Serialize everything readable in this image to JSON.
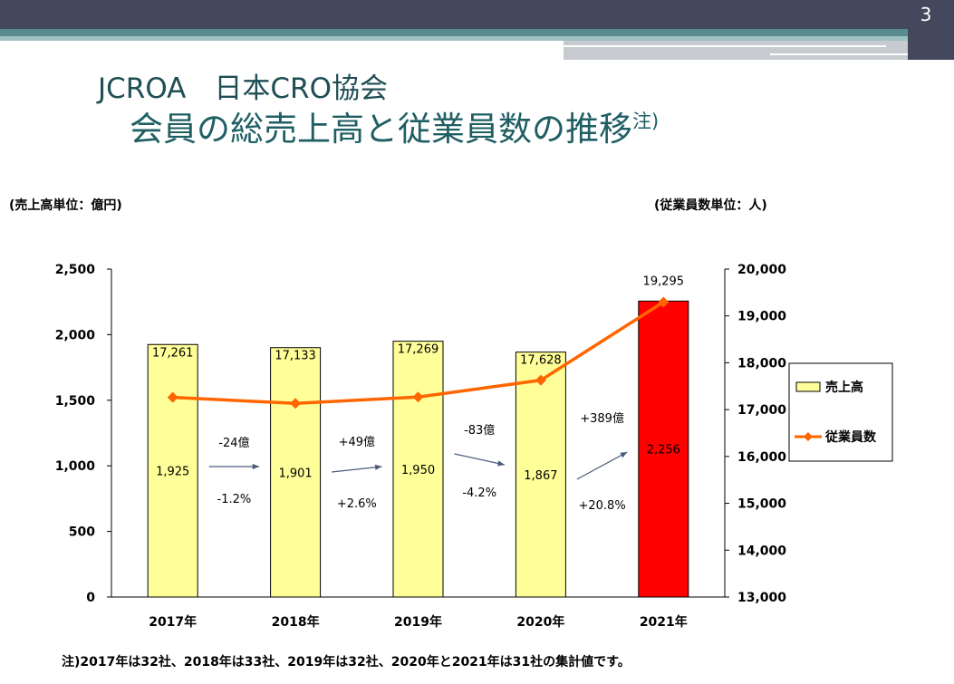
{
  "slide_number": "3",
  "title_line1": "JCROA　日本CRO協会",
  "title_line2": "会員の総売上高と従業員数の推移",
  "title_note_mark": "注)",
  "left_unit": "(売上高単位：億円)",
  "right_unit": "(従業員数単位：人)",
  "footnote": "注)2017年は32社、2018年は33社、2019年は32社、2020年と2021年は31社の集計値です。",
  "colors": {
    "bar": "#ffff99",
    "bar_highlight": "#ff0000",
    "line": "#ff6600",
    "header": "#43485c",
    "title": "#1f5f63"
  },
  "chart_data": {
    "type": "bar",
    "categories": [
      "2017年",
      "2018年",
      "2019年",
      "2020年",
      "2021年"
    ],
    "series": [
      {
        "name": "売上高",
        "type": "bar",
        "axis": "left",
        "values": [
          1925,
          1901,
          1950,
          1867,
          2256
        ],
        "labels": [
          "1,925",
          "1,901",
          "1,950",
          "1,867",
          "2,256"
        ]
      },
      {
        "name": "従業員数",
        "type": "line",
        "axis": "right",
        "values": [
          17261,
          17133,
          17269,
          17628,
          19295
        ],
        "labels": [
          "17,261",
          "17,133",
          "17,269",
          "17,628",
          "19,295"
        ]
      }
    ],
    "y_left": {
      "range": [
        0,
        2500
      ],
      "ticks": [
        "0",
        "500",
        "1,000",
        "1,500",
        "2,000",
        "2,500"
      ]
    },
    "y_right": {
      "range": [
        13000,
        20000
      ],
      "ticks": [
        "13,000",
        "14,000",
        "15,000",
        "16,000",
        "17,000",
        "18,000",
        "19,000",
        "20,000"
      ]
    },
    "changes": [
      {
        "amount": "-24億",
        "percent": "-1.2%"
      },
      {
        "amount": "+49億",
        "percent": "+2.6%"
      },
      {
        "amount": "-83億",
        "percent": "-4.2%"
      },
      {
        "amount": "+389億",
        "percent": "+20.8%"
      }
    ],
    "legend": [
      "売上高",
      "従業員数"
    ],
    "legend_position": "right"
  }
}
